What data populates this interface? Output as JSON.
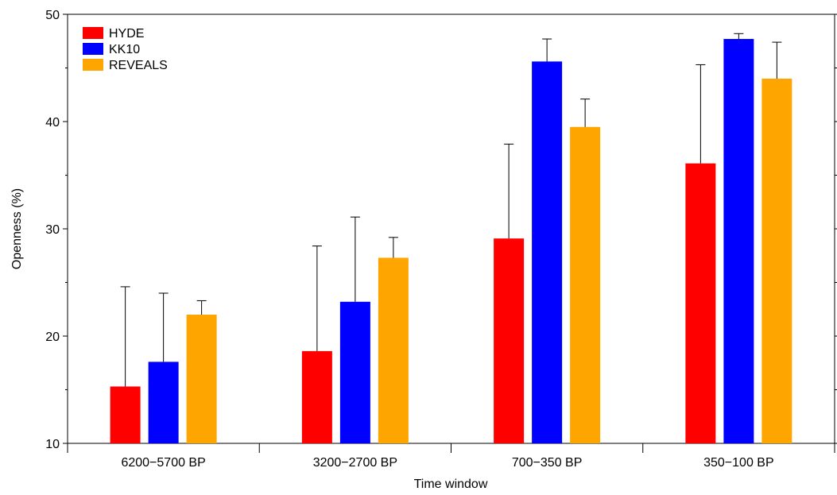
{
  "chart_data": {
    "type": "bar",
    "xlabel": "Time window",
    "ylabel": "Openness (%)",
    "ylim": [
      10,
      50
    ],
    "yticks": [
      10,
      20,
      30,
      40,
      50
    ],
    "categories": [
      "6200−5700 BP",
      "3200−2700 BP",
      "700−350 BP",
      "350−100 BP"
    ],
    "legend_position": "top-left",
    "grid": false,
    "series": [
      {
        "name": "HYDE",
        "color": "#ff0000",
        "values": [
          15.3,
          18.6,
          29.1,
          36.1
        ],
        "error_upper": [
          24.6,
          28.4,
          37.9,
          45.3
        ]
      },
      {
        "name": "KK10",
        "color": "#0000ff",
        "values": [
          17.6,
          23.2,
          45.6,
          47.7
        ],
        "error_upper": [
          24.0,
          31.1,
          47.7,
          48.2
        ]
      },
      {
        "name": "REVEALS",
        "color": "#ffa500",
        "values": [
          22.0,
          27.3,
          39.5,
          44.0
        ],
        "error_upper": [
          23.3,
          29.2,
          42.1,
          47.4
        ]
      }
    ]
  }
}
